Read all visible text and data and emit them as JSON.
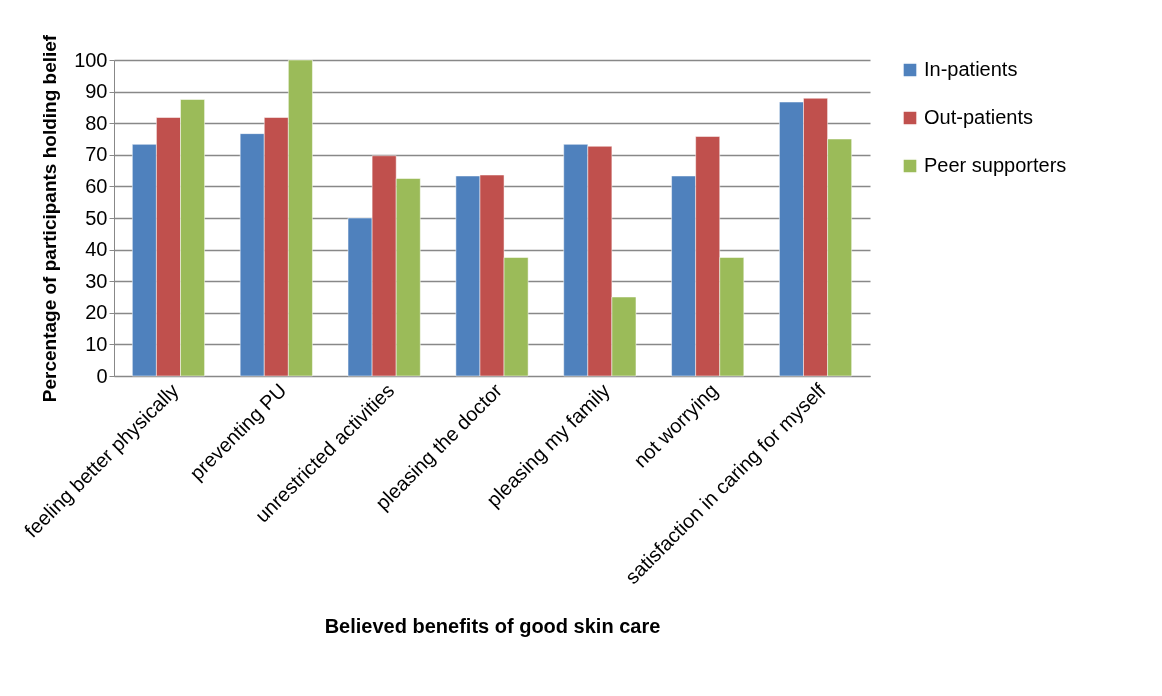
{
  "chart_data": {
    "type": "bar",
    "xlabel": "Believed benefits of good skin care",
    "ylabel": "Percentage of participants holding belief",
    "categories": [
      "feeling better physically",
      "preventing PU",
      "unrestricted activities",
      "pleasing the doctor",
      "pleasing my family",
      "not worrying",
      "satisfaction in caring for myself"
    ],
    "series": [
      {
        "name": "In-patients",
        "color": "#4f81bd",
        "values": [
          73.3,
          76.7,
          50,
          63.3,
          73.3,
          63.3,
          86.7
        ]
      },
      {
        "name": "Out-patients",
        "color": "#c0504d",
        "values": [
          81.8,
          81.8,
          69.7,
          63.6,
          72.7,
          75.8,
          87.9
        ]
      },
      {
        "name": "Peer supporters",
        "color": "#9bbb59",
        "values": [
          87.5,
          100,
          62.5,
          37.5,
          25,
          37.5,
          75
        ]
      }
    ],
    "ylim": [
      0,
      100
    ],
    "yticks": [
      0,
      10,
      20,
      30,
      40,
      50,
      60,
      70,
      80,
      90,
      100
    ],
    "grid": "y",
    "legend": "right"
  }
}
